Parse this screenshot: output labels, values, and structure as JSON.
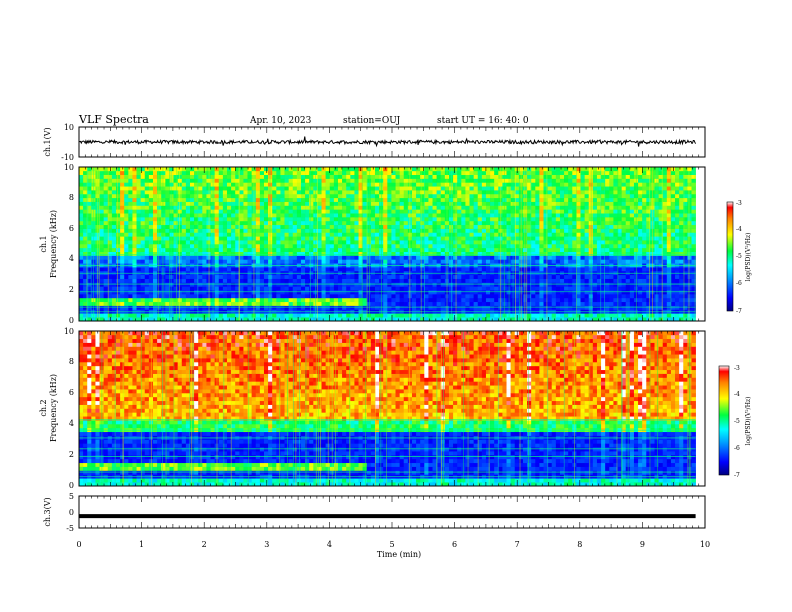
{
  "header": {
    "title": "VLF Spectra",
    "date": "Apr. 10, 2023",
    "station": "station=OUJ",
    "start_ut": "start UT =   16: 40: 0"
  },
  "chart_data": [
    {
      "type": "line",
      "panel": "ch1-waveform",
      "ylabel": "ch.1(V)",
      "ylim": [
        -10,
        10
      ],
      "yticks": [
        "10",
        "-10"
      ],
      "xlim": [
        0,
        10
      ],
      "description_of_trace": "noisy waveform near 0 V",
      "baseline": 0
    },
    {
      "type": "heatmap",
      "panel": "ch1-spectrogram",
      "ylabel": "ch.1\nFrequency (kHz)",
      "ylim": [
        0,
        10
      ],
      "yticks": [
        "0",
        "2",
        "4",
        "6",
        "8",
        "10"
      ],
      "xlim": [
        0,
        10
      ],
      "data_end_min": 9.85,
      "change_time_min": 4.6,
      "colorbar": {
        "label": "log(PSD)(V²/Hz)",
        "min": -7,
        "max": -3,
        "ticks": [
          "-3",
          "-4",
          "-5",
          "-6",
          "-7"
        ]
      }
    },
    {
      "type": "heatmap",
      "panel": "ch2-spectrogram",
      "ylabel": "ch.2\nFrequency (kHz)",
      "ylim": [
        0,
        10
      ],
      "yticks": [
        "0",
        "2",
        "4",
        "6",
        "8",
        "10"
      ],
      "xlim": [
        0,
        10
      ],
      "data_end_min": 9.85,
      "change_time_min": 4.6,
      "colorbar": {
        "label": "log(PSD)(V²/Hz)",
        "min": -7,
        "max": -3,
        "ticks": [
          "-3",
          "-4",
          "-5",
          "-6",
          "-7"
        ]
      }
    },
    {
      "type": "line",
      "panel": "ch3-waveform",
      "ylabel": "ch.3(V)",
      "ylim": [
        -5,
        5
      ],
      "yticks": [
        "5",
        "0",
        "-5"
      ],
      "xlim": [
        0,
        10
      ],
      "xticks": [
        "0",
        "1",
        "2",
        "3",
        "4",
        "5",
        "6",
        "7",
        "8",
        "9",
        "10"
      ],
      "xlabel": "Time (min)",
      "constant_value": -1.3
    }
  ]
}
